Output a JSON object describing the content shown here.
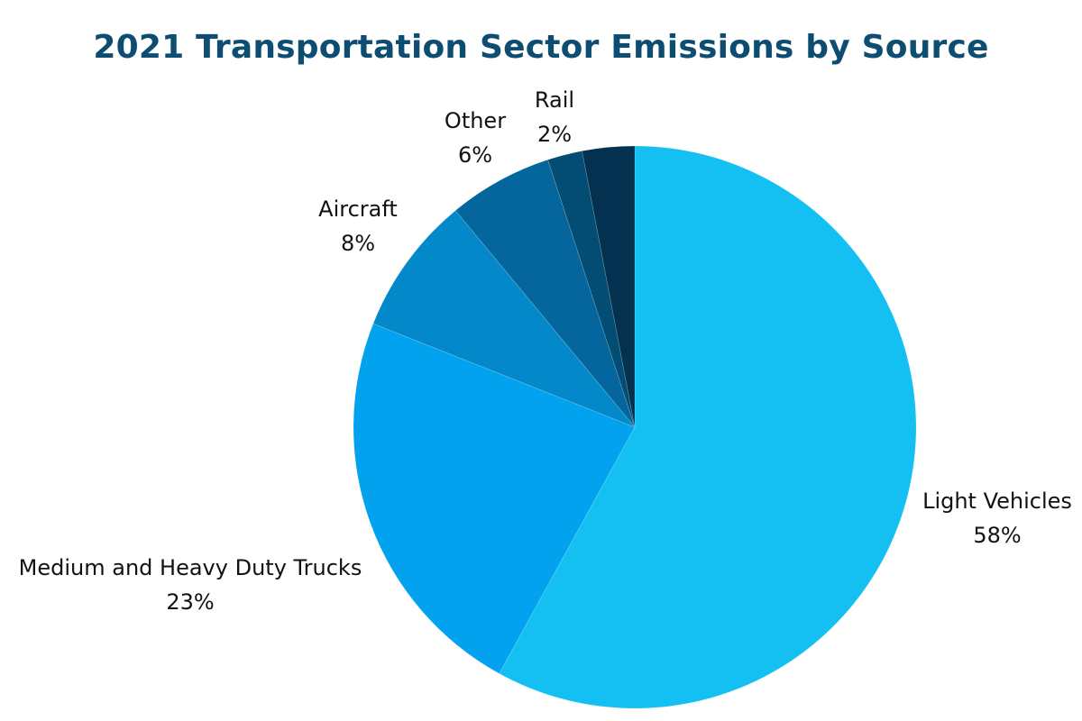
{
  "chart_data": {
    "type": "pie",
    "title": "2021 Transportation Sector Emissions by Source",
    "start": "top",
    "direction": "clockwise",
    "slices": [
      {
        "label": "Light Vehicles",
        "value": 58,
        "value_label": "58%",
        "color": "#13c0f1"
      },
      {
        "label": "Medium and Heavy Duty Trucks",
        "value": 23,
        "value_label": "23%",
        "color": "#03a2ef"
      },
      {
        "label": "Aircraft",
        "value": 8,
        "value_label": "8%",
        "color": "#0388c9"
      },
      {
        "label": "Other",
        "value": 6,
        "value_label": "6%",
        "color": "#04669c"
      },
      {
        "label": "Rail",
        "value": 2,
        "value_label": "2%",
        "color": "#034d74"
      },
      {
        "label": "",
        "value": 3,
        "value_label": "",
        "color": "#03314f"
      }
    ]
  }
}
